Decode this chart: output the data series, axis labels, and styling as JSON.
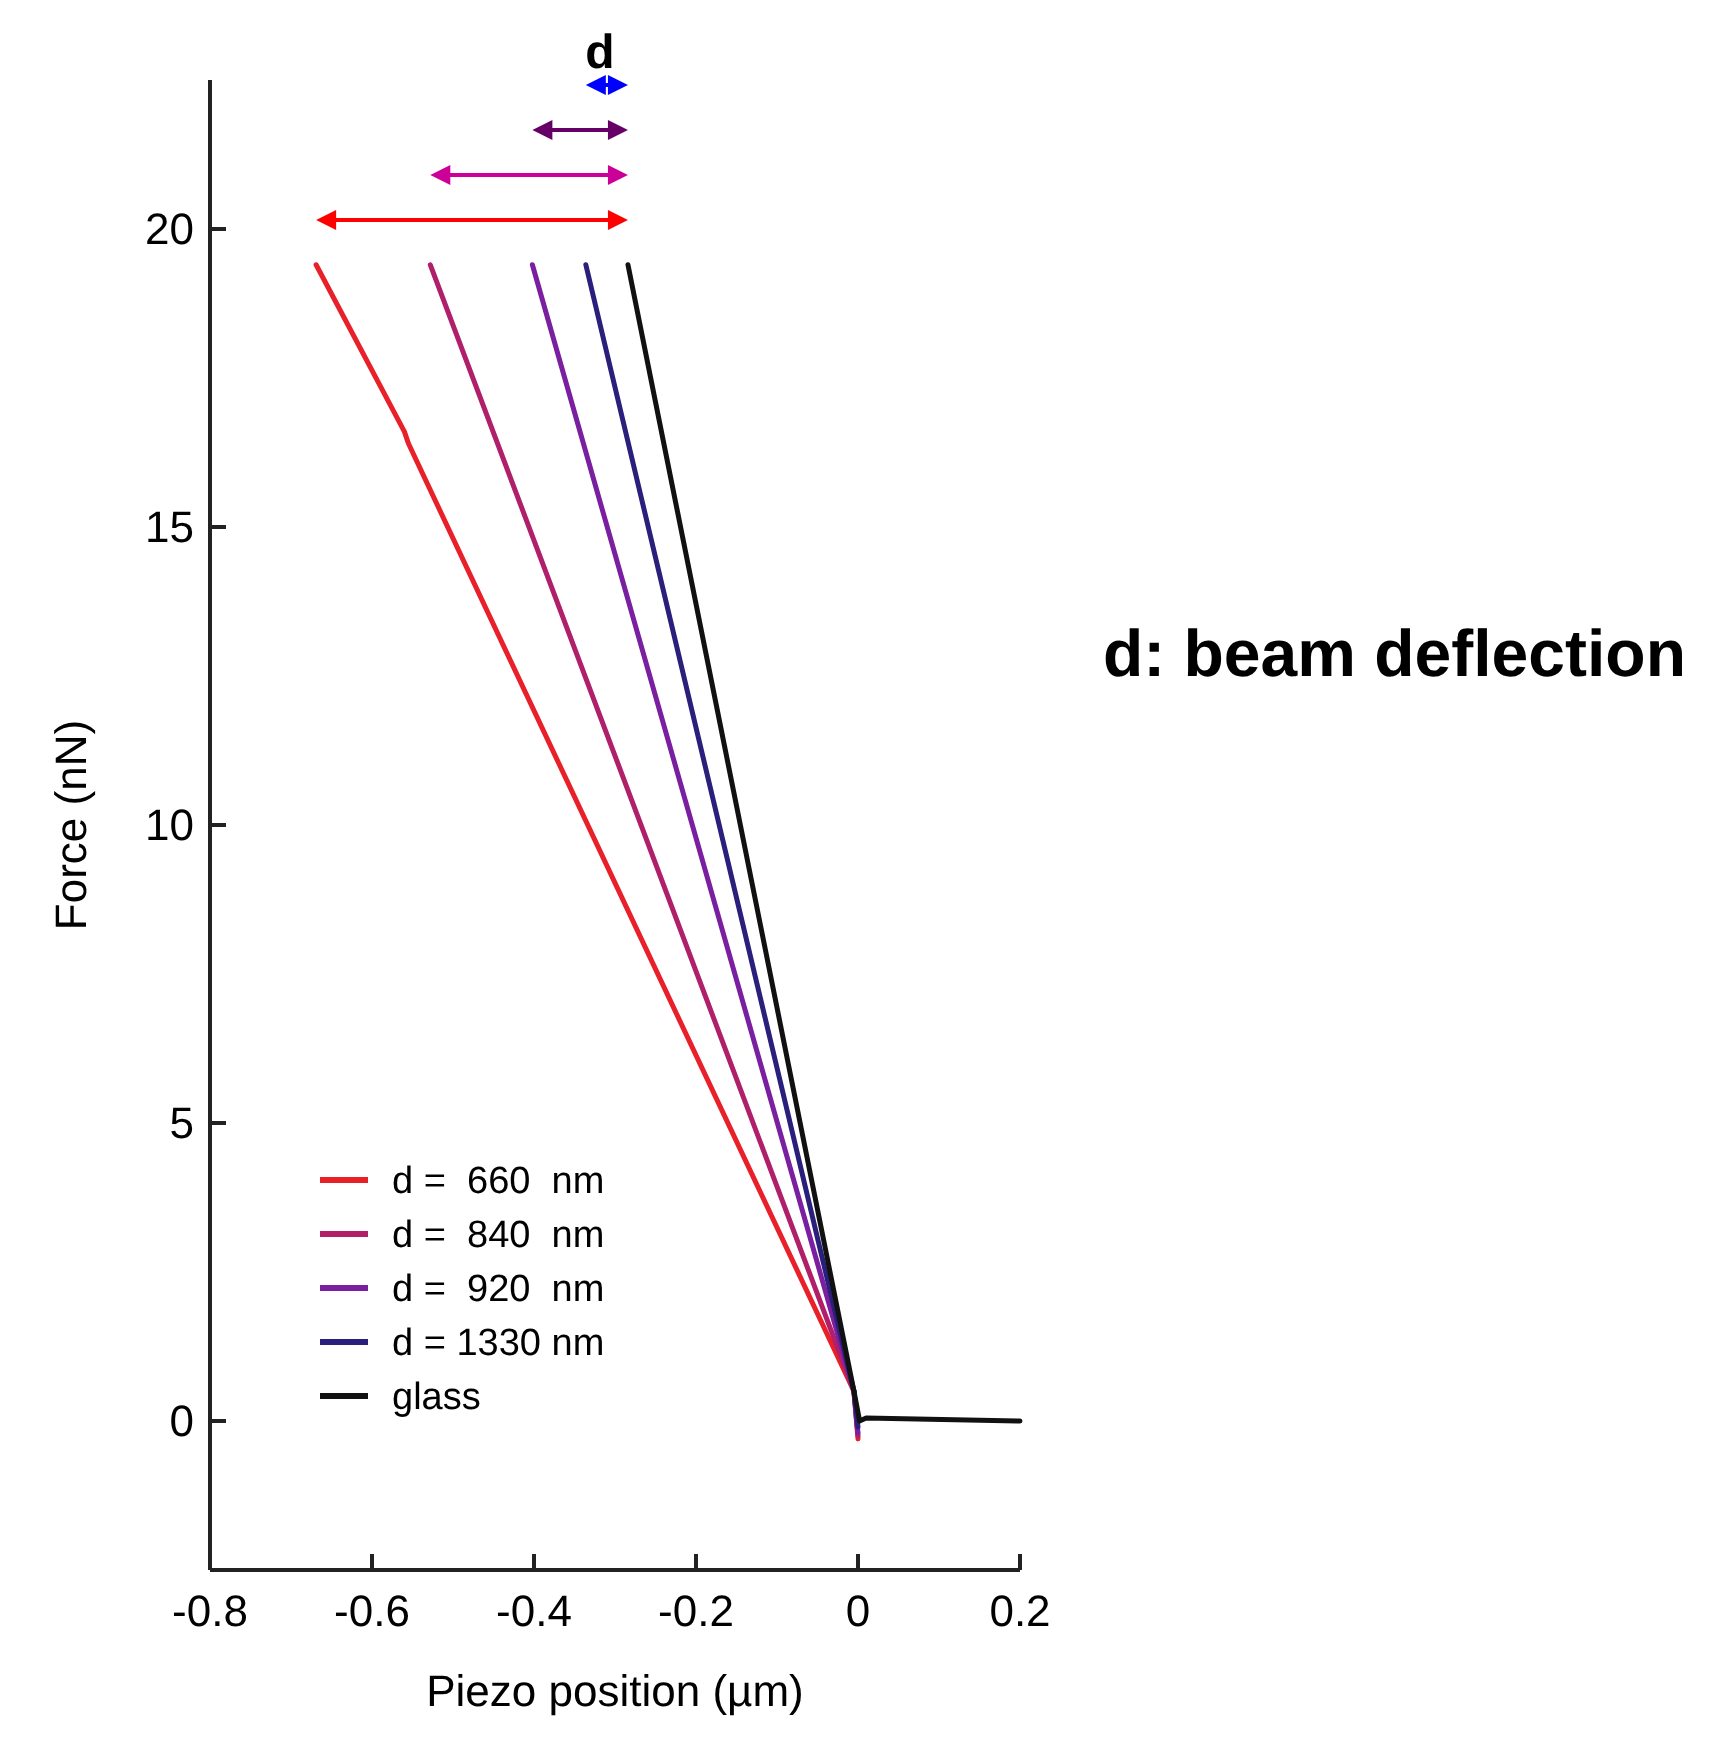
{
  "chart_data": {
    "type": "line",
    "xlabel": "Piezo position (µm)",
    "ylabel": "Force (nN)",
    "annotations": [
      "d",
      "d: beam deflection"
    ],
    "xlim": [
      -0.8,
      0.2
    ],
    "xticks": [
      -0.8,
      -0.6,
      -0.4,
      -0.2,
      0,
      0.2
    ],
    "ylim": [
      -2.5,
      22.5
    ],
    "yticks": [
      0,
      5,
      10,
      15,
      20
    ],
    "legend": "bottom left",
    "grid": false,
    "line_style": "solid",
    "series": [
      {
        "name": "d =  660  nm",
        "color": "#e8202a",
        "x": [
          -0.669,
          -0.56,
          -0.555,
          -0.005,
          0
        ],
        "values": [
          19.4,
          16.6,
          16.4,
          0.5,
          -0.3
        ]
      },
      {
        "name": "d =  840  nm",
        "color": "#b0206a",
        "x": [
          -0.528,
          -0.005,
          0
        ],
        "values": [
          19.4,
          0.5,
          -0.25
        ]
      },
      {
        "name": "d =  920  nm",
        "color": "#7a1fa0",
        "x": [
          -0.402,
          -0.005,
          0
        ],
        "values": [
          19.4,
          0.5,
          -0.2
        ]
      },
      {
        "name": "d = 1330 nm",
        "color": "#2a1f7a",
        "x": [
          -0.336,
          -0.005,
          0
        ],
        "values": [
          19.4,
          0.5,
          -0.1
        ]
      },
      {
        "name": "glass",
        "color": "#111111",
        "x": [
          -0.284,
          -0.005,
          0.002,
          0.01,
          0.2
        ],
        "values": [
          19.4,
          0.5,
          0,
          0.05,
          0
        ]
      }
    ]
  }
}
